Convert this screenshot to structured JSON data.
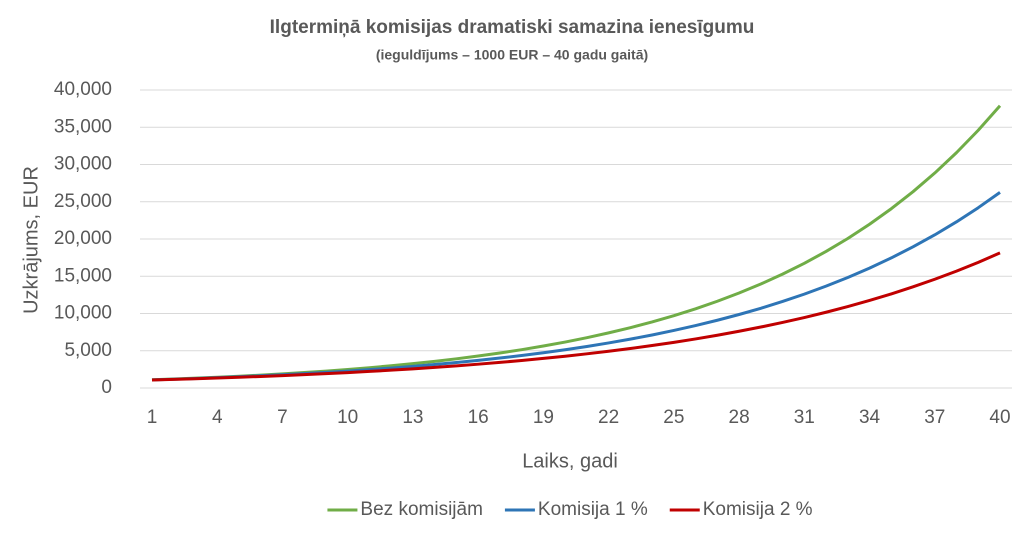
{
  "chart_data": {
    "type": "line",
    "title": "Ilgtermiņā komisijas dramatiski samazina ienesīgumu",
    "subtitle": "(ieguldījums – 1000 EUR – 40 gadu gaitā)",
    "x_label": "Laiks, gadi",
    "y_label": "Uzkrājums, EUR",
    "x": [
      1,
      2,
      3,
      4,
      5,
      6,
      7,
      8,
      9,
      10,
      11,
      12,
      13,
      14,
      15,
      16,
      17,
      18,
      19,
      20,
      21,
      22,
      23,
      24,
      25,
      26,
      27,
      28,
      29,
      30,
      31,
      32,
      33,
      34,
      35,
      36,
      37,
      38,
      39,
      40
    ],
    "xlim": [
      1,
      40
    ],
    "xticks": [
      1,
      4,
      7,
      10,
      13,
      16,
      19,
      22,
      25,
      28,
      31,
      34,
      37,
      40
    ],
    "ylim": [
      0,
      40000
    ],
    "yticks": [
      0,
      {
        "value": 5000,
        "label": "5,000"
      },
      {
        "value": 10000,
        "label": "10,000"
      },
      {
        "value": 15000,
        "label": "15,000"
      },
      {
        "value": 20000,
        "label": "20,000"
      },
      {
        "value": 25000,
        "label": "25,000"
      },
      {
        "value": 30000,
        "label": "30,000"
      },
      {
        "value": 35000,
        "label": "35,000"
      },
      {
        "value": 40000,
        "label": "40,000"
      }
    ],
    "grid": true,
    "legend": "bottom",
    "series": [
      {
        "name": "Bez komisijām",
        "color": "#70ad47",
        "values": [
          1100,
          1205,
          1319,
          1444,
          1581,
          1731,
          1896,
          2076,
          2273,
          2489,
          2725,
          2984,
          3268,
          3578,
          3918,
          4290,
          4698,
          5144,
          5633,
          6168,
          6754,
          7396,
          8098,
          8868,
          9710,
          10633,
          11643,
          12749,
          13960,
          15287,
          16739,
          18329,
          20070,
          21977,
          24065,
          26351,
          28854,
          31596,
          34597,
          37884
        ]
      },
      {
        "name": "Komisija 1 %",
        "color": "#2e75b6",
        "values": [
          1090,
          1183,
          1283,
          1392,
          1511,
          1639,
          1778,
          1930,
          2094,
          2272,
          2465,
          2674,
          2902,
          3148,
          3416,
          3706,
          4021,
          4363,
          4734,
          5136,
          5573,
          6047,
          6561,
          7118,
          7723,
          8380,
          9092,
          9865,
          10703,
          11613,
          12600,
          13671,
          14833,
          16094,
          17462,
          18946,
          20557,
          22304,
          24200,
          26257
        ]
      },
      {
        "name": "Komisija 2 %",
        "color": "#c00000",
        "values": [
          1080,
          1161,
          1248,
          1342,
          1442,
          1551,
          1667,
          1792,
          1926,
          2071,
          2226,
          2393,
          2573,
          2766,
          2973,
          3196,
          3436,
          3694,
          3971,
          4269,
          4589,
          4933,
          5303,
          5701,
          6128,
          6588,
          7082,
          7613,
          8184,
          8798,
          9458,
          10167,
          10930,
          11749,
          12631,
          13578,
          14596,
          15691,
          16868,
          18133
        ]
      }
    ]
  }
}
